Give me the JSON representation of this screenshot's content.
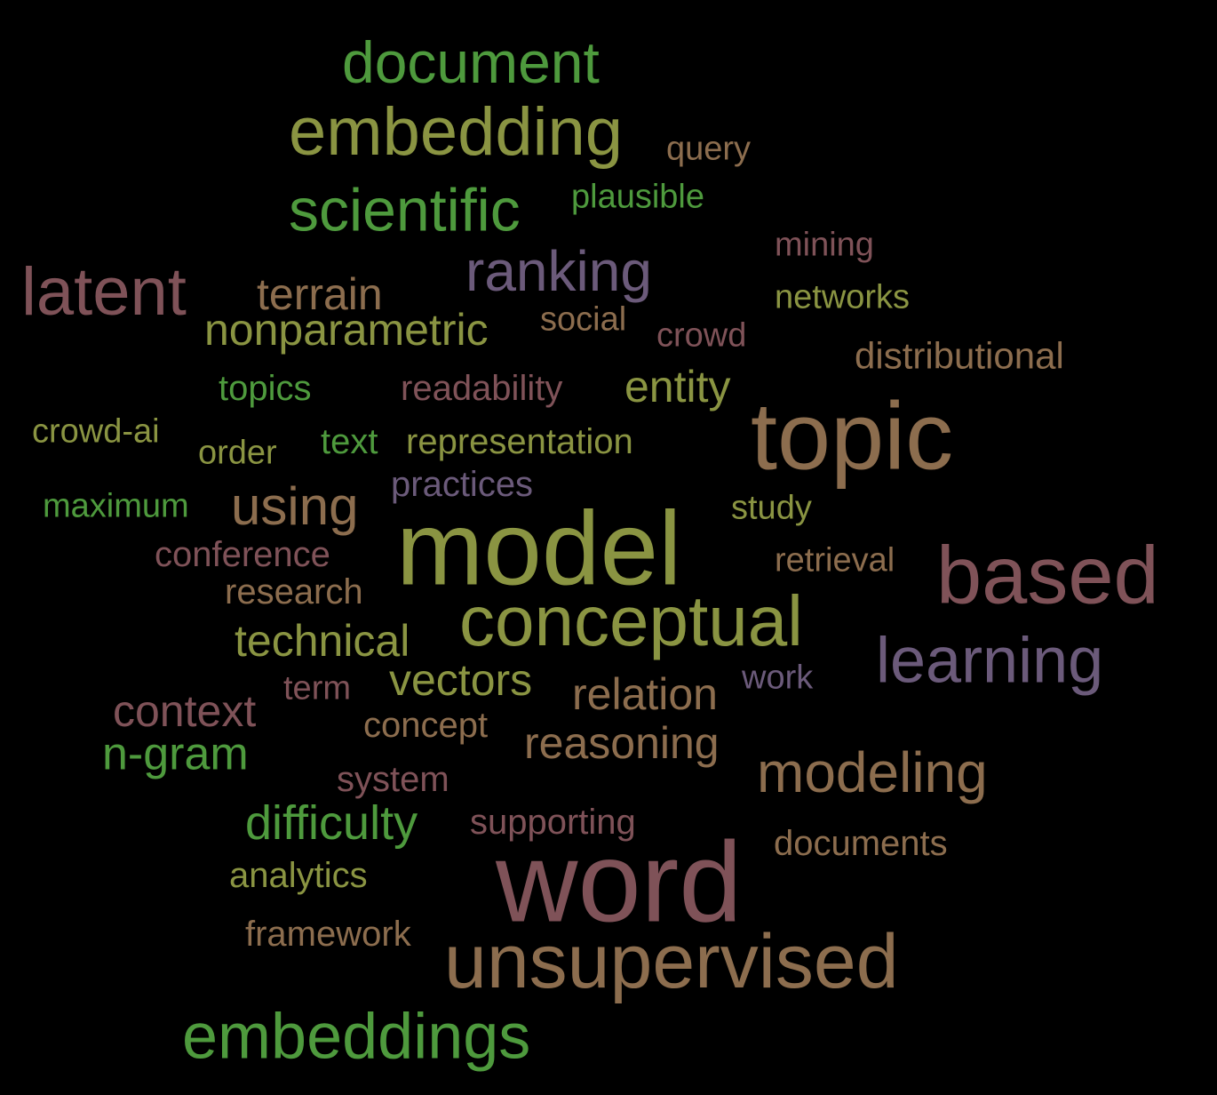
{
  "palette": {
    "background": "#000000",
    "green": "#4e9a3d",
    "olive": "#8a9442",
    "tan": "#8c6d4e",
    "mauve": "#7f5258",
    "purple": "#6b5a7a"
  },
  "words": [
    {
      "text": "document",
      "color": "#4e9a3d"
    },
    {
      "text": "embedding",
      "color": "#8a9442"
    },
    {
      "text": "query",
      "color": "#8c6d4e"
    },
    {
      "text": "scientific",
      "color": "#4e9a3d"
    },
    {
      "text": "plausible",
      "color": "#4e9a3d"
    },
    {
      "text": "mining",
      "color": "#7f5258"
    },
    {
      "text": "ranking",
      "color": "#6b5a7a"
    },
    {
      "text": "latent",
      "color": "#7f5258"
    },
    {
      "text": "terrain",
      "color": "#8c6d4e"
    },
    {
      "text": "networks",
      "color": "#8a9442"
    },
    {
      "text": "nonparametric",
      "color": "#8a9442"
    },
    {
      "text": "social",
      "color": "#8c6d4e"
    },
    {
      "text": "crowd",
      "color": "#7f5258"
    },
    {
      "text": "distributional",
      "color": "#8c6d4e"
    },
    {
      "text": "topics",
      "color": "#4e9a3d"
    },
    {
      "text": "readability",
      "color": "#7f5258"
    },
    {
      "text": "entity",
      "color": "#8a9442"
    },
    {
      "text": "topic",
      "color": "#8c6d4e"
    },
    {
      "text": "crowd-ai",
      "color": "#8a9442"
    },
    {
      "text": "order",
      "color": "#8a9442"
    },
    {
      "text": "text",
      "color": "#4e9a3d"
    },
    {
      "text": "representation",
      "color": "#8a9442"
    },
    {
      "text": "practices",
      "color": "#6b5a7a"
    },
    {
      "text": "maximum",
      "color": "#4e9a3d"
    },
    {
      "text": "using",
      "color": "#8c6d4e"
    },
    {
      "text": "study",
      "color": "#8a9442"
    },
    {
      "text": "model",
      "color": "#8a9442"
    },
    {
      "text": "conference",
      "color": "#7f5258"
    },
    {
      "text": "retrieval",
      "color": "#8c6d4e"
    },
    {
      "text": "based",
      "color": "#7f5258"
    },
    {
      "text": "research",
      "color": "#8c6d4e"
    },
    {
      "text": "conceptual",
      "color": "#8a9442"
    },
    {
      "text": "technical",
      "color": "#8a9442"
    },
    {
      "text": "learning",
      "color": "#6b5a7a"
    },
    {
      "text": "vectors",
      "color": "#8a9442"
    },
    {
      "text": "work",
      "color": "#6b5a7a"
    },
    {
      "text": "term",
      "color": "#7f5258"
    },
    {
      "text": "relation",
      "color": "#8c6d4e"
    },
    {
      "text": "context",
      "color": "#7f5258"
    },
    {
      "text": "concept",
      "color": "#8c6d4e"
    },
    {
      "text": "reasoning",
      "color": "#8c6d4e"
    },
    {
      "text": "n-gram",
      "color": "#4e9a3d"
    },
    {
      "text": "modeling",
      "color": "#8c6d4e"
    },
    {
      "text": "system",
      "color": "#7f5258"
    },
    {
      "text": "difficulty",
      "color": "#4e9a3d"
    },
    {
      "text": "supporting",
      "color": "#7f5258"
    },
    {
      "text": "documents",
      "color": "#8c6d4e"
    },
    {
      "text": "analytics",
      "color": "#8a9442"
    },
    {
      "text": "word",
      "color": "#7f5258"
    },
    {
      "text": "framework",
      "color": "#8c6d4e"
    },
    {
      "text": "unsupervised",
      "color": "#8c6d4e"
    },
    {
      "text": "embeddings",
      "color": "#4e9a3d"
    }
  ]
}
